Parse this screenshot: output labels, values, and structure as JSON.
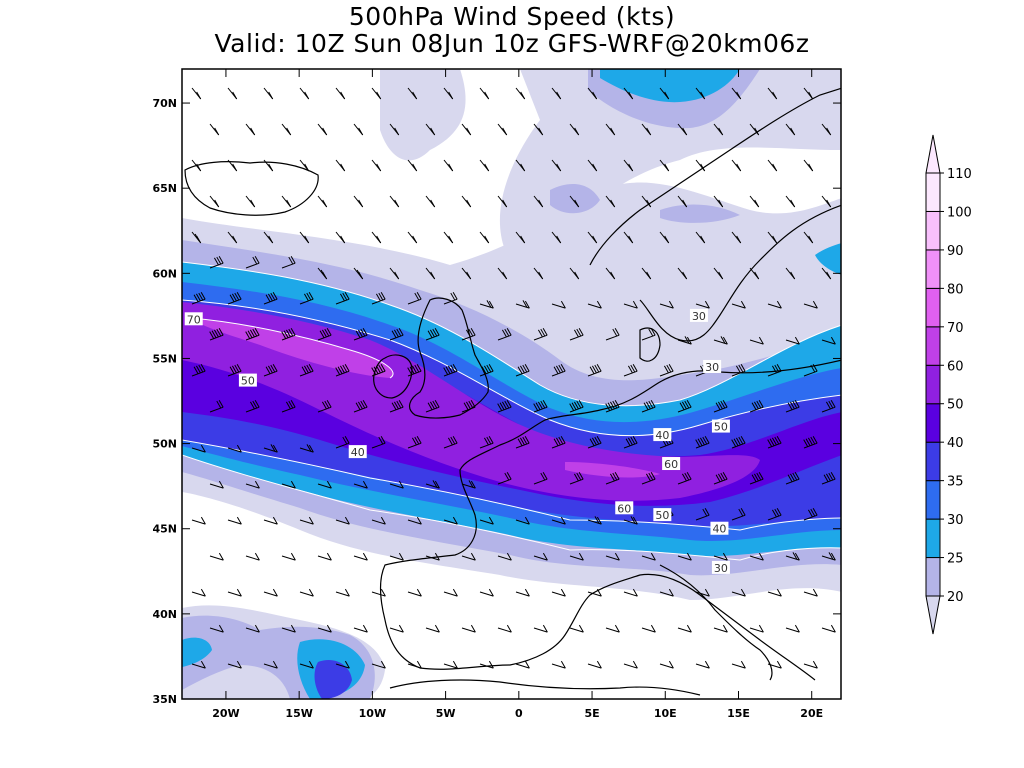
{
  "title": {
    "line1": "500hPa Wind Speed (kts)",
    "line2": "Valid: 10Z Sun 08Jun 10z GFS-WRF@20km06z"
  },
  "map": {
    "lon_range": [
      -23,
      22
    ],
    "lat_range": [
      35,
      72
    ],
    "lon_ticks": [
      {
        "value": -20,
        "label": "20W"
      },
      {
        "value": -15,
        "label": "15W"
      },
      {
        "value": -10,
        "label": "10W"
      },
      {
        "value": -5,
        "label": "5W"
      },
      {
        "value": 0,
        "label": "0"
      },
      {
        "value": 5,
        "label": "5E"
      },
      {
        "value": 10,
        "label": "10E"
      },
      {
        "value": 15,
        "label": "15E"
      },
      {
        "value": 20,
        "label": "20E"
      }
    ],
    "lat_ticks": [
      {
        "value": 70,
        "label": "70N"
      },
      {
        "value": 65,
        "label": "65N"
      },
      {
        "value": 60,
        "label": "60N"
      },
      {
        "value": 55,
        "label": "55N"
      },
      {
        "value": 50,
        "label": "50N"
      },
      {
        "value": 45,
        "label": "45N"
      },
      {
        "value": 40,
        "label": "40N"
      },
      {
        "value": 35,
        "label": "35N"
      }
    ],
    "contour_labels": [
      {
        "text": "70",
        "lon": -22.2,
        "lat": 57.3
      },
      {
        "text": "50",
        "lon": -18.5,
        "lat": 53.7
      },
      {
        "text": "40",
        "lon": -11.0,
        "lat": 49.5
      },
      {
        "text": "40",
        "lon": 9.8,
        "lat": 50.5
      },
      {
        "text": "50",
        "lon": 13.8,
        "lat": 51.0
      },
      {
        "text": "60",
        "lon": 10.4,
        "lat": 48.8
      },
      {
        "text": "60",
        "lon": 7.2,
        "lat": 46.2
      },
      {
        "text": "50",
        "lon": 9.8,
        "lat": 45.8
      },
      {
        "text": "40",
        "lon": 13.7,
        "lat": 45.0
      },
      {
        "text": "30",
        "lon": 13.8,
        "lat": 42.7
      },
      {
        "text": "30",
        "lon": 12.3,
        "lat": 57.5
      },
      {
        "text": "30",
        "lon": 13.2,
        "lat": 54.5
      }
    ]
  },
  "colorbar": {
    "levels": [
      {
        "label": "20",
        "color": "#d8d8ee"
      },
      {
        "label": "25",
        "color": "#b4b4e8"
      },
      {
        "label": "30",
        "color": "#1ea8e8"
      },
      {
        "label": "35",
        "color": "#2e6cf0"
      },
      {
        "label": "40",
        "color": "#3c3ce6"
      },
      {
        "label": "50",
        "color": "#5a00e0"
      },
      {
        "label": "60",
        "color": "#9020e0"
      },
      {
        "label": "70",
        "color": "#c040e8"
      },
      {
        "label": "80",
        "color": "#e060f0"
      },
      {
        "label": "90",
        "color": "#f090f8"
      },
      {
        "label": "100",
        "color": "#f8c0fc"
      },
      {
        "label": "110",
        "color": "#fce8fe"
      }
    ]
  }
}
